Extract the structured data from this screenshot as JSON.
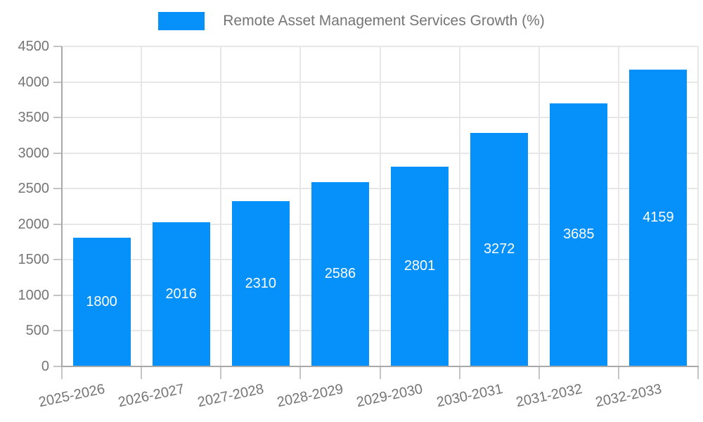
{
  "chart_data": {
    "type": "bar",
    "title": "Remote Asset Management Services Growth (%)",
    "categories": [
      "2025-2026",
      "2026-2027",
      "2027-2028",
      "2028-2029",
      "2029-2030",
      "2030-2031",
      "2031-2032",
      "2032-2033"
    ],
    "values": [
      1800,
      2016,
      2310,
      2586,
      2801,
      3272,
      3685,
      4159
    ],
    "xlabel": "",
    "ylabel": "",
    "ylim": [
      0,
      4500
    ],
    "ytick_step": 500,
    "yticks": [
      "0",
      "500",
      "1000",
      "1500",
      "2000",
      "2500",
      "3000",
      "3500",
      "4000",
      "4500"
    ],
    "grid": "on",
    "legend_position": "top-center",
    "value_labels": "inside-center",
    "colors": {
      "bar": "#0690FA",
      "value_label": "#FFFFFF",
      "axis_text": "#757575",
      "grid_line": "#E7E7E7",
      "axis_line": "#A8A8A8",
      "tick_line": "#C4C4C4",
      "background": "#FFFFFF"
    }
  }
}
